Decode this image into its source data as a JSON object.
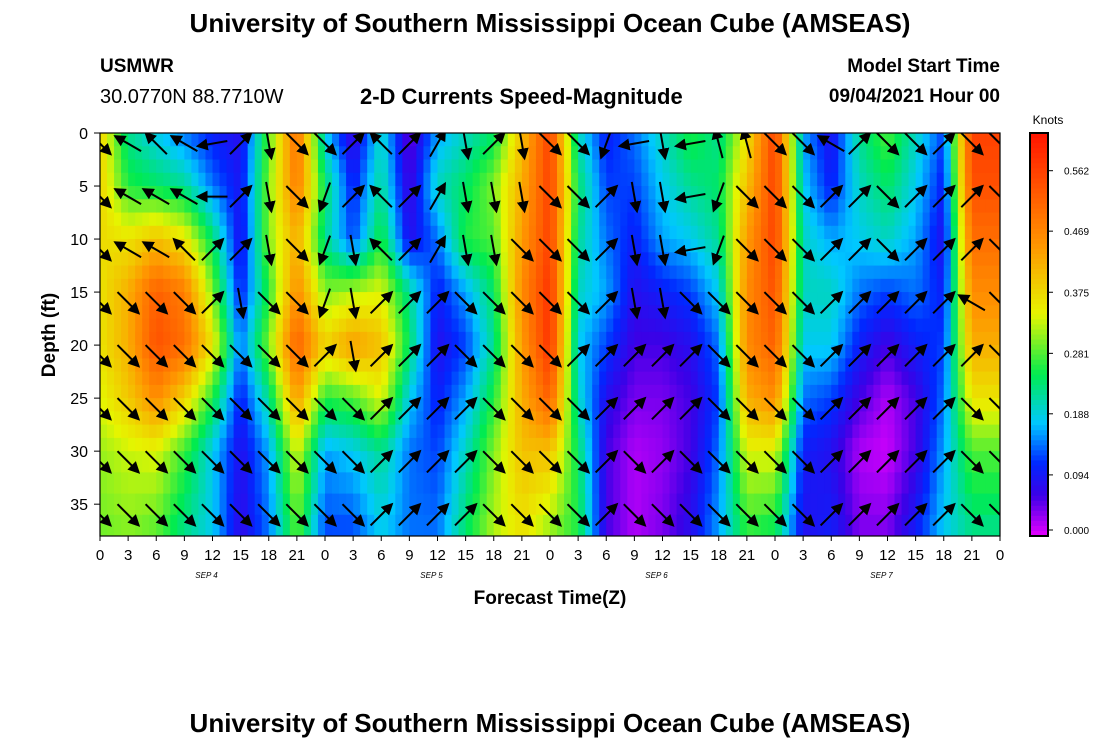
{
  "header": {
    "title_top": "University of Southern Mississippi Ocean Cube (AMSEAS)",
    "title_bottom": "University of Southern Mississippi Ocean Cube (AMSEAS)",
    "station": "USMWR",
    "coords": "30.0770N  88.7710W",
    "subtitle": "2-D Currents Speed-Magnitude",
    "model_start_label": "Model Start Time",
    "model_start_value": "09/04/2021 Hour 00"
  },
  "chart_data": {
    "type": "heatmap",
    "title": "2-D Currents Speed-Magnitude",
    "xlabel": "Forecast Time(Z)",
    "ylabel": "Depth (ft)",
    "x_ticks": [
      "0",
      "3",
      "6",
      "9",
      "12",
      "15",
      "18",
      "21",
      "0",
      "3",
      "6",
      "9",
      "12",
      "15",
      "18",
      "21",
      "0",
      "3",
      "6",
      "9",
      "12",
      "15",
      "18",
      "21",
      "0",
      "3",
      "6",
      "9",
      "12",
      "15",
      "18",
      "21",
      "0"
    ],
    "x_range_hours": [
      0,
      96
    ],
    "day_labels": [
      {
        "label": "SEP 4",
        "hour": 12
      },
      {
        "label": "SEP 5",
        "hour": 36
      },
      {
        "label": "SEP 6",
        "hour": 60
      },
      {
        "label": "SEP 7",
        "hour": 84
      }
    ],
    "y_ticks": [
      0,
      5,
      10,
      15,
      20,
      25,
      30,
      35
    ],
    "ylim": [
      38,
      0
    ],
    "colorbar": {
      "unit": "Knots",
      "ticks": [
        "0.562",
        "0.469",
        "0.375",
        "0.281",
        "0.188",
        "0.094",
        "0.000"
      ],
      "range": [
        0.0,
        0.62
      ]
    },
    "speed_columns": [
      {
        "hour": 0,
        "values": [
          0.38,
          0.38,
          0.37,
          0.36,
          0.36,
          0.34,
          0.31,
          0.29
        ]
      },
      {
        "hour": 3,
        "values": [
          0.22,
          0.26,
          0.36,
          0.42,
          0.42,
          0.39,
          0.33,
          0.3
        ]
      },
      {
        "hour": 6,
        "values": [
          0.18,
          0.24,
          0.4,
          0.52,
          0.54,
          0.46,
          0.34,
          0.28
        ]
      },
      {
        "hour": 9,
        "values": [
          0.14,
          0.22,
          0.36,
          0.48,
          0.5,
          0.38,
          0.27,
          0.22
        ]
      },
      {
        "hour": 12,
        "values": [
          0.1,
          0.14,
          0.24,
          0.3,
          0.36,
          0.26,
          0.18,
          0.18
        ]
      },
      {
        "hour": 15,
        "values": [
          0.08,
          0.09,
          0.08,
          0.1,
          0.14,
          0.1,
          0.08,
          0.07
        ]
      },
      {
        "hour": 18,
        "values": [
          0.28,
          0.3,
          0.3,
          0.26,
          0.3,
          0.22,
          0.16,
          0.14
        ]
      },
      {
        "hour": 21,
        "values": [
          0.5,
          0.48,
          0.42,
          0.46,
          0.52,
          0.44,
          0.34,
          0.28
        ]
      },
      {
        "hour": 24,
        "values": [
          0.18,
          0.24,
          0.22,
          0.3,
          0.38,
          0.26,
          0.16,
          0.12
        ]
      },
      {
        "hour": 27,
        "values": [
          0.06,
          0.1,
          0.12,
          0.32,
          0.44,
          0.28,
          0.18,
          0.12
        ]
      },
      {
        "hour": 30,
        "values": [
          0.2,
          0.22,
          0.26,
          0.34,
          0.4,
          0.34,
          0.22,
          0.18
        ]
      },
      {
        "hour": 33,
        "values": [
          0.04,
          0.06,
          0.08,
          0.22,
          0.24,
          0.18,
          0.14,
          0.14
        ]
      },
      {
        "hour": 36,
        "values": [
          0.16,
          0.2,
          0.14,
          0.1,
          0.08,
          0.1,
          0.12,
          0.14
        ]
      },
      {
        "hour": 39,
        "values": [
          0.2,
          0.24,
          0.26,
          0.16,
          0.12,
          0.16,
          0.2,
          0.24
        ]
      },
      {
        "hour": 42,
        "values": [
          0.24,
          0.3,
          0.28,
          0.24,
          0.22,
          0.26,
          0.3,
          0.32
        ]
      },
      {
        "hour": 45,
        "values": [
          0.4,
          0.42,
          0.44,
          0.46,
          0.44,
          0.42,
          0.4,
          0.36
        ]
      },
      {
        "hour": 48,
        "values": [
          0.56,
          0.56,
          0.56,
          0.58,
          0.58,
          0.52,
          0.4,
          0.3
        ]
      },
      {
        "hour": 51,
        "values": [
          0.2,
          0.24,
          0.22,
          0.2,
          0.18,
          0.2,
          0.24,
          0.26
        ]
      },
      {
        "hour": 54,
        "values": [
          0.1,
          0.12,
          0.14,
          0.16,
          0.12,
          0.08,
          0.06,
          0.06
        ]
      },
      {
        "hour": 57,
        "values": [
          0.14,
          0.12,
          0.1,
          0.08,
          0.06,
          0.04,
          0.02,
          0.02
        ]
      },
      {
        "hour": 60,
        "values": [
          0.2,
          0.18,
          0.16,
          0.1,
          0.06,
          0.04,
          0.03,
          0.04
        ]
      },
      {
        "hour": 63,
        "values": [
          0.26,
          0.22,
          0.18,
          0.12,
          0.08,
          0.06,
          0.06,
          0.08
        ]
      },
      {
        "hour": 66,
        "values": [
          0.22,
          0.24,
          0.22,
          0.18,
          0.14,
          0.12,
          0.14,
          0.16
        ]
      },
      {
        "hour": 69,
        "values": [
          0.36,
          0.4,
          0.44,
          0.46,
          0.46,
          0.42,
          0.34,
          0.26
        ]
      },
      {
        "hour": 72,
        "values": [
          0.56,
          0.56,
          0.56,
          0.54,
          0.52,
          0.46,
          0.34,
          0.24
        ]
      },
      {
        "hour": 75,
        "values": [
          0.16,
          0.18,
          0.2,
          0.2,
          0.18,
          0.14,
          0.1,
          0.08
        ]
      },
      {
        "hour": 78,
        "values": [
          0.08,
          0.1,
          0.16,
          0.2,
          0.18,
          0.12,
          0.08,
          0.1
        ]
      },
      {
        "hour": 81,
        "values": [
          0.22,
          0.2,
          0.18,
          0.14,
          0.1,
          0.06,
          0.02,
          0.04
        ]
      },
      {
        "hour": 84,
        "values": [
          0.28,
          0.24,
          0.2,
          0.12,
          0.06,
          0.02,
          0.01,
          0.04
        ]
      },
      {
        "hour": 87,
        "values": [
          0.2,
          0.18,
          0.16,
          0.14,
          0.1,
          0.06,
          0.06,
          0.1
        ]
      },
      {
        "hour": 90,
        "values": [
          0.12,
          0.1,
          0.08,
          0.1,
          0.12,
          0.14,
          0.16,
          0.18
        ]
      },
      {
        "hour": 93,
        "values": [
          0.56,
          0.54,
          0.5,
          0.46,
          0.42,
          0.36,
          0.28,
          0.22
        ]
      },
      {
        "hour": 96,
        "values": [
          0.56,
          0.54,
          0.5,
          0.46,
          0.42,
          0.36,
          0.28,
          0.22
        ]
      }
    ],
    "speed_depths": [
      0,
      5,
      10,
      15,
      20,
      25,
      30,
      38
    ],
    "vectors": {
      "hour_step": 3,
      "depths": [
        1,
        6,
        11,
        16,
        21,
        26,
        31,
        36
      ],
      "directions_deg_from_north": [
        [
          135,
          300,
          315,
          300,
          260,
          45,
          170,
          135,
          135,
          45,
          315,
          45,
          30,
          170,
          45,
          170,
          135,
          135,
          200,
          260,
          170,
          260,
          345,
          345,
          135,
          135,
          300,
          45,
          135,
          135,
          45,
          135,
          135
        ],
        [
          135,
          300,
          300,
          300,
          270,
          45,
          170,
          135,
          200,
          45,
          315,
          45,
          30,
          170,
          170,
          170,
          135,
          135,
          45,
          170,
          170,
          260,
          200,
          135,
          135,
          135,
          45,
          45,
          135,
          45,
          45,
          45,
          135
        ],
        [
          135,
          300,
          300,
          315,
          45,
          45,
          170,
          135,
          200,
          170,
          315,
          45,
          30,
          170,
          170,
          135,
          135,
          135,
          45,
          170,
          170,
          260,
          200,
          135,
          135,
          135,
          45,
          45,
          135,
          45,
          45,
          45,
          135
        ],
        [
          135,
          135,
          135,
          135,
          45,
          170,
          135,
          135,
          200,
          170,
          45,
          45,
          45,
          135,
          135,
          135,
          135,
          135,
          45,
          170,
          170,
          135,
          135,
          135,
          135,
          135,
          45,
          45,
          45,
          45,
          45,
          300,
          135
        ],
        [
          135,
          135,
          135,
          135,
          135,
          135,
          135,
          135,
          45,
          170,
          45,
          45,
          45,
          135,
          135,
          135,
          135,
          45,
          45,
          45,
          45,
          45,
          135,
          135,
          135,
          135,
          45,
          45,
          45,
          45,
          45,
          45,
          135
        ],
        [
          135,
          135,
          135,
          135,
          135,
          135,
          135,
          135,
          135,
          135,
          45,
          45,
          45,
          45,
          135,
          135,
          135,
          135,
          45,
          45,
          45,
          45,
          135,
          135,
          135,
          135,
          45,
          45,
          45,
          45,
          45,
          135,
          135
        ],
        [
          135,
          135,
          135,
          135,
          135,
          135,
          135,
          135,
          135,
          135,
          45,
          45,
          45,
          45,
          135,
          135,
          135,
          135,
          45,
          135,
          45,
          135,
          135,
          135,
          135,
          135,
          45,
          45,
          45,
          45,
          45,
          135,
          135
        ],
        [
          135,
          135,
          135,
          135,
          135,
          135,
          135,
          135,
          135,
          135,
          45,
          45,
          45,
          45,
          135,
          135,
          135,
          135,
          45,
          135,
          135,
          135,
          135,
          135,
          135,
          135,
          45,
          45,
          45,
          45,
          45,
          135,
          135
        ]
      ]
    }
  }
}
